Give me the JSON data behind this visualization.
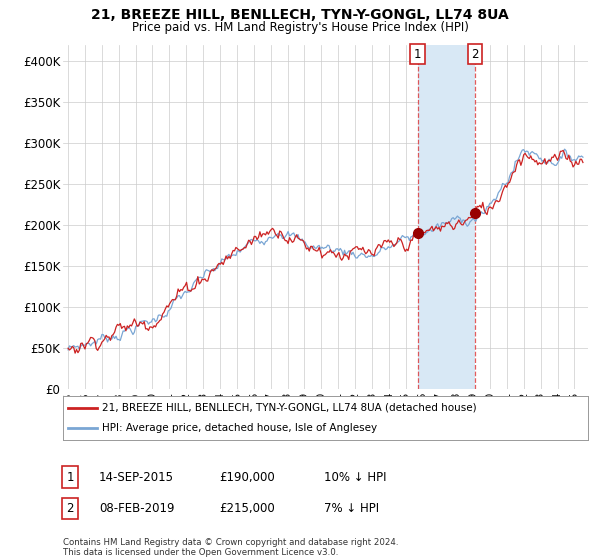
{
  "title": "21, BREEZE HILL, BENLLECH, TYN-Y-GONGL, LL74 8UA",
  "subtitle": "Price paid vs. HM Land Registry's House Price Index (HPI)",
  "ylim": [
    0,
    420000
  ],
  "yticks": [
    0,
    50000,
    100000,
    150000,
    200000,
    250000,
    300000,
    350000,
    400000
  ],
  "ytick_labels": [
    "£0",
    "£50K",
    "£100K",
    "£150K",
    "£200K",
    "£250K",
    "£300K",
    "£350K",
    "£400K"
  ],
  "legend_line1": "21, BREEZE HILL, BENLLECH, TYN-Y-GONGL, LL74 8UA (detached house)",
  "legend_line2": "HPI: Average price, detached house, Isle of Anglesey",
  "annotation1_label": "1",
  "annotation1_date": "14-SEP-2015",
  "annotation1_price": "£190,000",
  "annotation1_note": "10% ↓ HPI",
  "annotation2_label": "2",
  "annotation2_date": "08-FEB-2019",
  "annotation2_price": "£215,000",
  "annotation2_note": "7% ↓ HPI",
  "footer": "Contains HM Land Registry data © Crown copyright and database right 2024.\nThis data is licensed under the Open Government Licence v3.0.",
  "sale1_x": 2015.71,
  "sale1_y": 190000,
  "sale2_x": 2019.1,
  "sale2_y": 215000,
  "shade_x1": 2015.71,
  "shade_x2": 2019.1,
  "hpi_color": "#7aa6d4",
  "price_color": "#cc2222",
  "shade_color": "#d8e8f5",
  "marker_color": "#990000",
  "background_color": "#ffffff",
  "grid_color": "#cccccc",
  "xlim_left": 1994.7,
  "xlim_right": 2025.8
}
